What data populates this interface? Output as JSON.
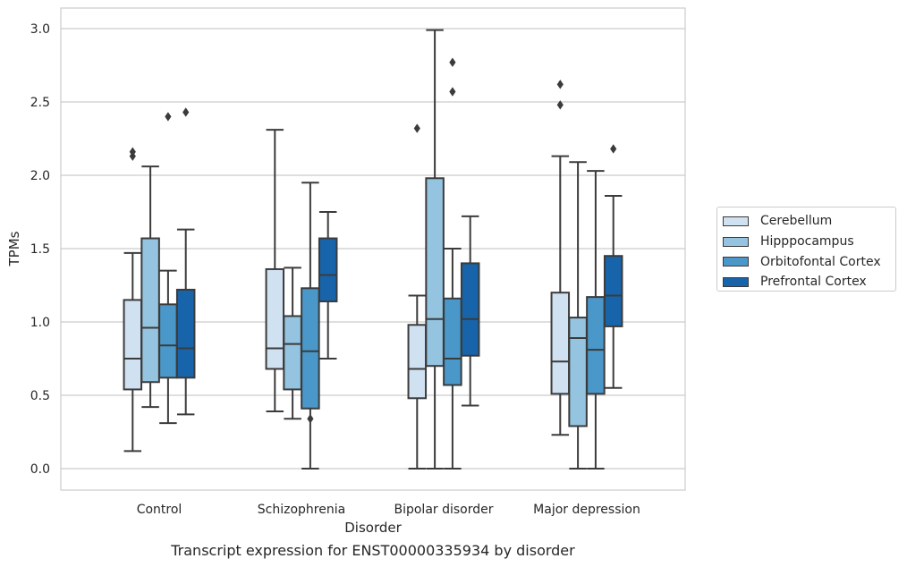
{
  "caption": "Transcript expression for ENST00000335934 by disorder",
  "chart_data": {
    "type": "box",
    "title": "",
    "xlabel": "Disorder",
    "ylabel": "TPMs",
    "ylim": [
      -0.14,
      3.15
    ],
    "yticks": [
      0.0,
      0.5,
      1.0,
      1.5,
      2.0,
      2.5,
      3.0
    ],
    "ytick_labels": [
      "0.0",
      "0.5",
      "1.0",
      "1.5",
      "2.0",
      "2.5",
      "3.0"
    ],
    "grid": "horizontal",
    "legend_position": "right, outside plot",
    "categories": [
      "Control",
      "Schizophrenia",
      "Bipolar disorder",
      "Major depression"
    ],
    "series": [
      {
        "name": "Cerebellum",
        "color": "#d0e1f2",
        "boxes": [
          {
            "whislo": 0.12,
            "q1": 0.54,
            "med": 0.75,
            "q3": 1.15,
            "whishi": 1.47,
            "fliers": [
              2.13,
              2.16
            ]
          },
          {
            "whislo": 0.39,
            "q1": 0.68,
            "med": 0.82,
            "q3": 1.36,
            "whishi": 2.31,
            "fliers": []
          },
          {
            "whislo": 0.0,
            "q1": 0.48,
            "med": 0.68,
            "q3": 0.98,
            "whishi": 1.18,
            "fliers": [
              2.32
            ]
          },
          {
            "whislo": 0.23,
            "q1": 0.51,
            "med": 0.73,
            "q3": 1.2,
            "whishi": 2.13,
            "fliers": [
              2.48,
              2.62
            ]
          }
        ]
      },
      {
        "name": "Hipppocampus",
        "color": "#94c4df",
        "boxes": [
          {
            "whislo": 0.42,
            "q1": 0.59,
            "med": 0.96,
            "q3": 1.57,
            "whishi": 2.06,
            "fliers": []
          },
          {
            "whislo": 0.34,
            "q1": 0.54,
            "med": 0.85,
            "q3": 1.04,
            "whishi": 1.37,
            "fliers": []
          },
          {
            "whislo": 0.0,
            "q1": 0.7,
            "med": 1.02,
            "q3": 1.98,
            "whishi": 2.99,
            "fliers": []
          },
          {
            "whislo": 0.0,
            "q1": 0.29,
            "med": 0.89,
            "q3": 1.03,
            "whishi": 2.09,
            "fliers": []
          }
        ]
      },
      {
        "name": "Orbitofontal Cortex",
        "color": "#4a98c9",
        "boxes": [
          {
            "whislo": 0.31,
            "q1": 0.62,
            "med": 0.84,
            "q3": 1.12,
            "whishi": 1.35,
            "fliers": [
              2.4
            ]
          },
          {
            "whislo": 0.0,
            "q1": 0.41,
            "med": 0.8,
            "q3": 1.23,
            "whishi": 1.95,
            "fliers": [
              0.34
            ]
          },
          {
            "whislo": 0.0,
            "q1": 0.57,
            "med": 0.75,
            "q3": 1.16,
            "whishi": 1.5,
            "fliers": [
              2.57,
              2.77
            ]
          },
          {
            "whislo": 0.0,
            "q1": 0.51,
            "med": 0.81,
            "q3": 1.17,
            "whishi": 2.03,
            "fliers": []
          }
        ]
      },
      {
        "name": "Prefrontal Cortex",
        "color": "#1764ab",
        "boxes": [
          {
            "whislo": 0.37,
            "q1": 0.62,
            "med": 0.82,
            "q3": 1.22,
            "whishi": 1.63,
            "fliers": [
              2.43
            ]
          },
          {
            "whislo": 0.75,
            "q1": 1.14,
            "med": 1.32,
            "q3": 1.57,
            "whishi": 1.75,
            "fliers": []
          },
          {
            "whislo": 0.43,
            "q1": 0.77,
            "med": 1.02,
            "q3": 1.4,
            "whishi": 1.72,
            "fliers": []
          },
          {
            "whislo": 0.55,
            "q1": 0.97,
            "med": 1.18,
            "q3": 1.45,
            "whishi": 1.86,
            "fliers": [
              2.18
            ]
          }
        ]
      }
    ]
  }
}
